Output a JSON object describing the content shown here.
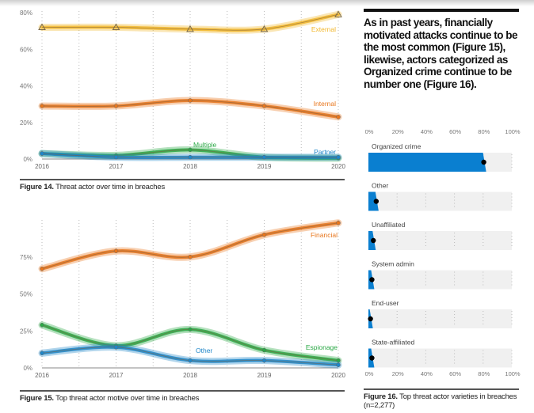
{
  "callout": {
    "text": "As in past years, financially motivated attacks continue to be the most common (Figure 15), likewise, actors categorized as Organized crime continue to be number one (Figure 16)."
  },
  "captions": {
    "fig14_label": "Figure 14.",
    "fig14_text": " Threat actor over time in breaches",
    "fig15_label": "Figure 15.",
    "fig15_text": " Top threat actor motive over time in breaches",
    "fig16_label": "Figure 16.",
    "fig16_text": " Top threat actor varieties in breaches (n=2,277)"
  },
  "colors": {
    "external": "#f2b72c",
    "internal": "#e8761c",
    "multiple": "#2aa845",
    "partner": "#1f86c8",
    "financial": "#e8761c",
    "espionage": "#2aa845",
    "other": "#1f86c8",
    "bar": "#0a7fd0",
    "track": "#f0f0f0"
  },
  "chart_data": [
    {
      "type": "line",
      "title": "Figure 14. Threat actor over time in breaches",
      "x": [
        "2016",
        "2017",
        "2018",
        "2019",
        "2020"
      ],
      "ylim": [
        0,
        80
      ],
      "yticks": [
        "0%",
        "20%",
        "40%",
        "60%",
        "80%"
      ],
      "grid": "vertical-dotted",
      "series": [
        {
          "name": "External",
          "values": [
            72,
            72,
            71,
            71,
            79
          ]
        },
        {
          "name": "Internal",
          "values": [
            29,
            29,
            32,
            29,
            23
          ]
        },
        {
          "name": "Multiple",
          "values": [
            3,
            2,
            5,
            1,
            0.5
          ]
        },
        {
          "name": "Partner",
          "values": [
            3,
            1,
            1,
            1,
            1
          ]
        }
      ]
    },
    {
      "type": "line",
      "title": "Figure 15. Top threat actor motive over time in breaches",
      "x": [
        "2016",
        "2017",
        "2018",
        "2019",
        "2020"
      ],
      "ylim": [
        0,
        100
      ],
      "yticks": [
        "0%",
        "25%",
        "50%",
        "75%"
      ],
      "grid": "vertical-dotted",
      "series": [
        {
          "name": "Financial",
          "values": [
            67,
            79,
            75,
            90,
            98
          ]
        },
        {
          "name": "Espionage",
          "values": [
            29,
            15,
            26,
            12,
            5
          ]
        },
        {
          "name": "Other",
          "values": [
            10,
            14,
            5,
            5,
            2
          ]
        }
      ]
    },
    {
      "type": "bar",
      "orientation": "horizontal",
      "title": "Figure 16. Top threat actor varieties in breaches (n=2,277)",
      "categories": [
        "Organized crime",
        "Other",
        "Unaffiliated",
        "System admin",
        "End-user",
        "State-affiliated"
      ],
      "values": [
        81,
        6,
        4,
        3,
        2,
        3
      ],
      "xlim": [
        0,
        100
      ],
      "xticks": [
        "0%",
        "20%",
        "40%",
        "60%",
        "80%",
        "100%"
      ]
    }
  ]
}
